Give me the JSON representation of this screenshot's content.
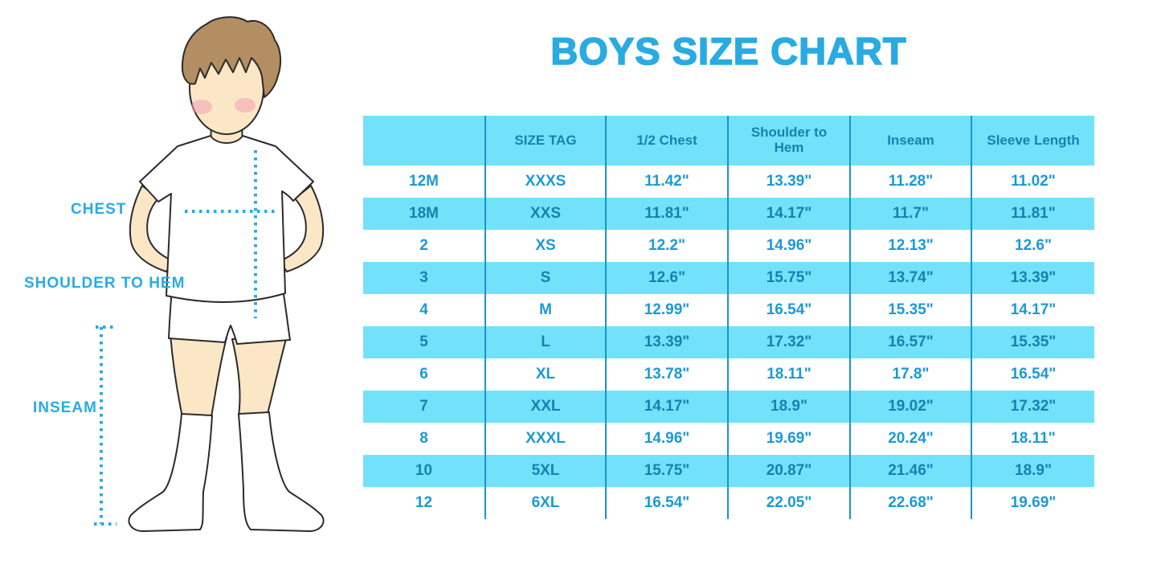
{
  "title": "BOYS SIZE CHART",
  "diagram": {
    "labels": {
      "chest": "CHEST",
      "shoulder_to_hem": "SHOULDER TO HEM",
      "inseam": "INSEAM"
    }
  },
  "colors": {
    "accent": "#29ABE2",
    "cyan": "#72E2FB",
    "table_border": "#1E93C6",
    "text_on_white": "#1B9AD4",
    "text_on_cyan": "#1781AF",
    "skin": "#FBE7C6",
    "hair": "#B28E62",
    "blush": "#F2A0B5",
    "outline": "#2B2B2B"
  },
  "chart_data": {
    "type": "table",
    "title": "BOYS SIZE CHART",
    "columns": [
      "",
      "SIZE TAG",
      "1/2 Chest",
      "Shoulder to Hem",
      "Inseam",
      "Sleeve Length"
    ],
    "rows": [
      [
        "12M",
        "XXXS",
        "11.42\"",
        "13.39\"",
        "11.28\"",
        "11.02\""
      ],
      [
        "18M",
        "XXS",
        "11.81\"",
        "14.17\"",
        "11.7\"",
        "11.81\""
      ],
      [
        "2",
        "XS",
        "12.2\"",
        "14.96\"",
        "12.13\"",
        "12.6\""
      ],
      [
        "3",
        "S",
        "12.6\"",
        "15.75\"",
        "13.74\"",
        "13.39\""
      ],
      [
        "4",
        "M",
        "12.99\"",
        "16.54\"",
        "15.35\"",
        "14.17\""
      ],
      [
        "5",
        "L",
        "13.39\"",
        "17.32\"",
        "16.57\"",
        "15.35\""
      ],
      [
        "6",
        "XL",
        "13.78\"",
        "18.11\"",
        "17.8\"",
        "16.54\""
      ],
      [
        "7",
        "XXL",
        "14.17\"",
        "18.9\"",
        "19.02\"",
        "17.32\""
      ],
      [
        "8",
        "XXXL",
        "14.96\"",
        "19.69\"",
        "20.24\"",
        "18.11\""
      ],
      [
        "10",
        "5XL",
        "15.75\"",
        "20.87\"",
        "21.46\"",
        "18.9\""
      ],
      [
        "12",
        "6XL",
        "16.54\"",
        "22.05\"",
        "22.68\"",
        "19.69\""
      ]
    ],
    "layout_hints": {
      "alternating_row_fill": "cyan/white",
      "header_fill": "cyan",
      "first_header_cell_empty": true
    }
  }
}
